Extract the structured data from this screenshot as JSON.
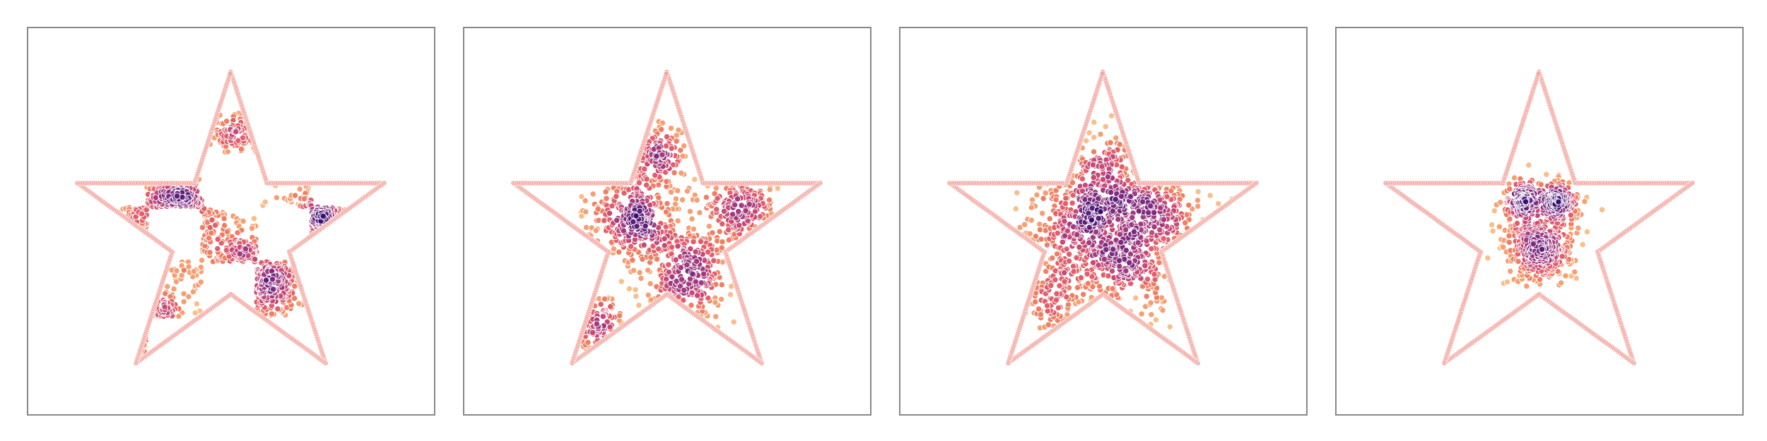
{
  "chart_data": [
    {
      "type": "scatter",
      "title": "",
      "xlabel": "",
      "ylabel": "",
      "grid": false,
      "legend": "none",
      "axes": "hidden",
      "colormap": "magma-like",
      "boundary": {
        "shape": "five-pointed star",
        "color": "#f3a7a0",
        "vertices": [
          [
            0.0,
            1.0
          ],
          [
            0.2245,
            0.309
          ],
          [
            0.9511,
            0.309
          ],
          [
            0.3633,
            -0.118
          ],
          [
            0.5878,
            -0.809
          ],
          [
            0.0,
            -0.382
          ],
          [
            -0.5878,
            -0.809
          ],
          [
            -0.3633,
            -0.118
          ],
          [
            -0.9511,
            0.309
          ],
          [
            -0.2245,
            0.309
          ]
        ]
      },
      "distribution": "checkerboard",
      "clusters": [
        {
          "name": "",
          "center": [
            -0.36,
            0.08
          ],
          "spread": 0.15,
          "count": 320
        },
        {
          "name": "",
          "center": [
            0.14,
            -0.28
          ],
          "spread": 0.15,
          "count": 320
        },
        {
          "name": "",
          "center": [
            0.56,
            0.08
          ],
          "spread": 0.12,
          "count": 160
        },
        {
          "name": "",
          "center": [
            -0.46,
            -0.62
          ],
          "spread": 0.1,
          "count": 90
        },
        {
          "name": "",
          "center": [
            0.02,
            0.6
          ],
          "spread": 0.09,
          "count": 90
        }
      ]
    },
    {
      "type": "scatter",
      "title": "",
      "xlabel": "",
      "ylabel": "",
      "grid": false,
      "legend": "none",
      "axes": "hidden",
      "colormap": "magma-like",
      "boundary": {
        "shape": "five-pointed star",
        "color": "#f3a7a0",
        "vertices": [
          [
            0.0,
            1.0
          ],
          [
            0.2245,
            0.309
          ],
          [
            0.9511,
            0.309
          ],
          [
            0.3633,
            -0.118
          ],
          [
            0.5878,
            -0.809
          ],
          [
            0.0,
            -0.382
          ],
          [
            -0.5878,
            -0.809
          ],
          [
            -0.3633,
            -0.118
          ],
          [
            -0.9511,
            0.309
          ],
          [
            -0.2245,
            0.309
          ]
        ]
      },
      "distribution": "diffusing",
      "clusters": [
        {
          "name": "",
          "center": [
            -0.22,
            0.12
          ],
          "spread": 0.14,
          "count": 300
        },
        {
          "name": "",
          "center": [
            0.1,
            -0.25
          ],
          "spread": 0.16,
          "count": 330
        },
        {
          "name": "",
          "center": [
            0.46,
            0.15
          ],
          "spread": 0.12,
          "count": 170
        },
        {
          "name": "",
          "center": [
            -0.04,
            0.48
          ],
          "spread": 0.1,
          "count": 120
        },
        {
          "name": "",
          "center": [
            -0.42,
            -0.6
          ],
          "spread": 0.1,
          "count": 90
        }
      ]
    },
    {
      "type": "scatter",
      "title": "",
      "xlabel": "",
      "ylabel": "",
      "grid": false,
      "legend": "none",
      "axes": "hidden",
      "colormap": "magma-like",
      "boundary": {
        "shape": "five-pointed star",
        "color": "#f3a7a0",
        "vertices": [
          [
            0.0,
            1.0
          ],
          [
            0.2245,
            0.309
          ],
          [
            0.9511,
            0.309
          ],
          [
            0.3633,
            -0.118
          ],
          [
            0.5878,
            -0.809
          ],
          [
            0.0,
            -0.382
          ],
          [
            -0.5878,
            -0.809
          ],
          [
            -0.3633,
            -0.118
          ],
          [
            -0.9511,
            0.309
          ],
          [
            -0.2245,
            0.309
          ]
        ]
      },
      "distribution": "diffusing",
      "clusters": [
        {
          "name": "",
          "center": [
            -0.12,
            0.1
          ],
          "spread": 0.18,
          "count": 330
        },
        {
          "name": "",
          "center": [
            0.12,
            -0.15
          ],
          "spread": 0.19,
          "count": 330
        },
        {
          "name": "",
          "center": [
            0.36,
            0.12
          ],
          "spread": 0.16,
          "count": 190
        },
        {
          "name": "",
          "center": [
            0.02,
            0.38
          ],
          "spread": 0.14,
          "count": 140
        },
        {
          "name": "",
          "center": [
            -0.28,
            -0.36
          ],
          "spread": 0.14,
          "count": 130
        }
      ]
    },
    {
      "type": "scatter",
      "title": "",
      "xlabel": "",
      "ylabel": "",
      "grid": false,
      "legend": "none",
      "axes": "hidden",
      "colormap": "magma-like",
      "boundary": {
        "shape": "five-pointed star",
        "color": "#f3a7a0",
        "vertices": [
          [
            0.0,
            1.0
          ],
          [
            0.2245,
            0.309
          ],
          [
            0.9511,
            0.309
          ],
          [
            0.3633,
            -0.118
          ],
          [
            0.5878,
            -0.809
          ],
          [
            0.0,
            -0.382
          ],
          [
            -0.5878,
            -0.809
          ],
          [
            -0.3633,
            -0.118
          ],
          [
            -0.9511,
            0.309
          ],
          [
            -0.2245,
            0.309
          ]
        ]
      },
      "distribution": "contracted",
      "clusters": [
        {
          "name": "",
          "center": [
            -0.1,
            0.2
          ],
          "spread": 0.05,
          "count": 170
        },
        {
          "name": "",
          "center": [
            0.12,
            0.2
          ],
          "spread": 0.05,
          "count": 170
        },
        {
          "name": "",
          "center": [
            0.0,
            -0.12
          ],
          "spread": 0.1,
          "count": 320
        },
        {
          "name": "",
          "center": [
            0.0,
            0.05
          ],
          "spread": 0.14,
          "count": 200
        }
      ]
    }
  ]
}
